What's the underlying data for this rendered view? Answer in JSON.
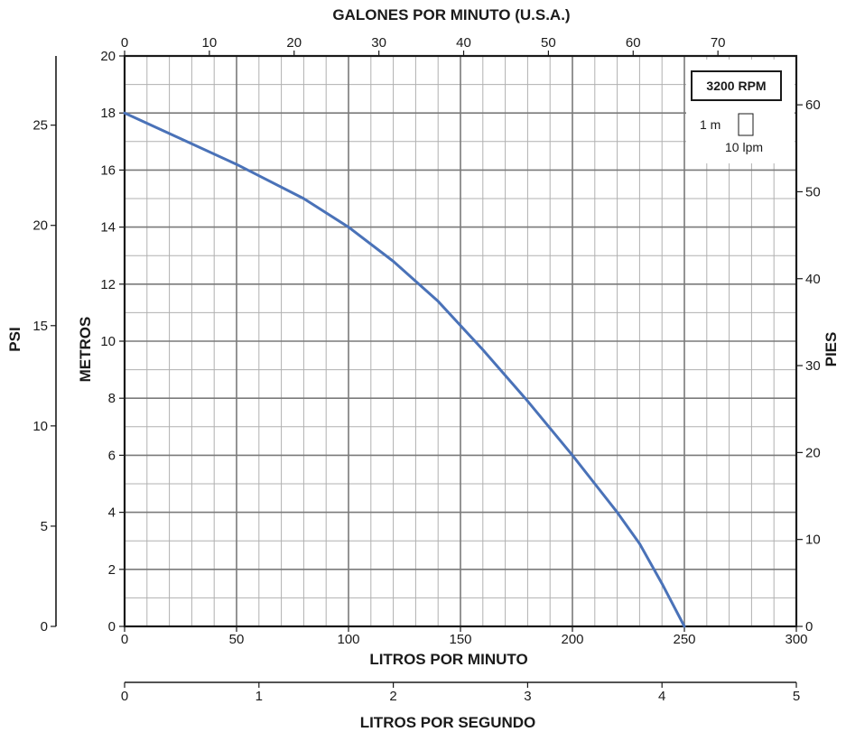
{
  "chart_data": {
    "type": "line",
    "title": "",
    "grid": true,
    "colors": {
      "curve": "#4a72b8",
      "grid_major": "#7a7a7a",
      "grid_minor": "#b0b0b0",
      "axis": "#1a1a1a"
    },
    "axes": {
      "bottom": {
        "label": "LITROS POR MINUTO",
        "range": [
          0,
          300
        ],
        "ticks": [
          0,
          50,
          100,
          150,
          200,
          250,
          300
        ]
      },
      "top": {
        "label": "GALONES POR MINUTO (U.S.A.)",
        "range": [
          0,
          79.25
        ],
        "ticks": [
          0,
          10,
          20,
          30,
          40,
          50,
          60,
          70
        ]
      },
      "left": {
        "label": "METROS",
        "range": [
          0,
          20
        ],
        "ticks": [
          0,
          2,
          4,
          6,
          8,
          10,
          12,
          14,
          16,
          18,
          20
        ]
      },
      "right": {
        "label": "PIES",
        "range": [
          0,
          65.62
        ],
        "ticks": [
          0,
          10,
          20,
          30,
          40,
          50,
          60
        ]
      },
      "far_left": {
        "label": "PSI",
        "range": [
          0,
          28.45
        ],
        "ticks": [
          0,
          5,
          10,
          15,
          20,
          25
        ]
      },
      "lower": {
        "label": "LITROS POR SEGUNDO",
        "range": [
          0,
          5
        ],
        "ticks": [
          0,
          1,
          2,
          3,
          4,
          5
        ]
      }
    },
    "legend": {
      "position": "top-right",
      "rpm": "3200 RPM",
      "scale_m": "1 m",
      "scale_lpm": "10 lpm"
    },
    "series": [
      {
        "x": [
          0,
          25,
          50,
          60,
          80,
          100,
          120,
          140,
          160,
          180,
          200,
          210,
          220,
          230,
          240,
          250
        ],
        "y": [
          18,
          17.1,
          16.2,
          15.8,
          15.0,
          14.0,
          12.8,
          11.4,
          9.7,
          7.9,
          6.0,
          5.0,
          4.0,
          2.9,
          1.5,
          0
        ]
      }
    ]
  }
}
